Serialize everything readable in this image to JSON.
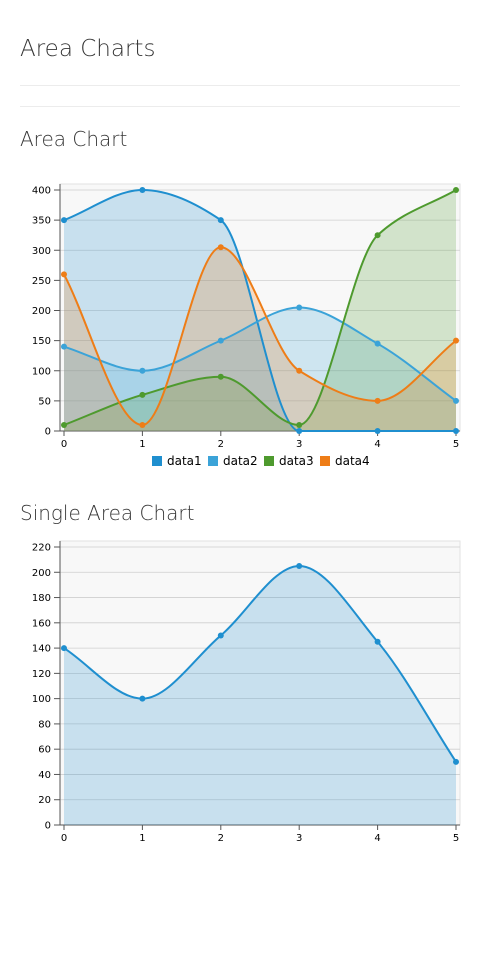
{
  "page": {
    "title": "Area Charts"
  },
  "sections": [
    {
      "title": "Area Chart"
    },
    {
      "title": "Single Area Chart"
    }
  ],
  "colors": {
    "data1": "#1f8fcf",
    "data2": "#3ba3d8",
    "data3": "#4e9a2e",
    "data4": "#ee7d17",
    "plot_bg": "#f8f8f8",
    "grid": "#cfcfcf"
  },
  "chart_data": [
    {
      "type": "area",
      "title": "Area Chart",
      "categories": [
        "0",
        "1",
        "2",
        "3",
        "4",
        "5"
      ],
      "x": [
        0,
        1,
        2,
        3,
        4,
        5
      ],
      "ylim": [
        0,
        400
      ],
      "yticks": [
        0,
        50,
        100,
        150,
        200,
        250,
        300,
        350,
        400
      ],
      "grid": "horizontal",
      "legend": "bottom",
      "series": [
        {
          "name": "data1",
          "color": "#1f8fcf",
          "values": [
            350,
            400,
            350,
            0,
            0,
            0
          ]
        },
        {
          "name": "data2",
          "color": "#3ba3d8",
          "values": [
            140,
            100,
            150,
            205,
            145,
            50
          ]
        },
        {
          "name": "data3",
          "color": "#4e9a2e",
          "values": [
            10,
            60,
            90,
            10,
            325,
            400
          ]
        },
        {
          "name": "data4",
          "color": "#ee7d17",
          "values": [
            260,
            10,
            305,
            100,
            50,
            150
          ]
        }
      ]
    },
    {
      "type": "area",
      "title": "Single Area Chart",
      "categories": [
        "0",
        "1",
        "2",
        "3",
        "4",
        "5"
      ],
      "x": [
        0,
        1,
        2,
        3,
        4,
        5
      ],
      "ylim": [
        0,
        220
      ],
      "yticks": [
        0,
        20,
        40,
        60,
        80,
        100,
        120,
        140,
        160,
        180,
        200,
        220
      ],
      "grid": "horizontal",
      "legend": "none",
      "series": [
        {
          "name": "data2",
          "color": "#1f8fcf",
          "values": [
            140,
            100,
            150,
            205,
            145,
            50
          ]
        }
      ]
    }
  ]
}
